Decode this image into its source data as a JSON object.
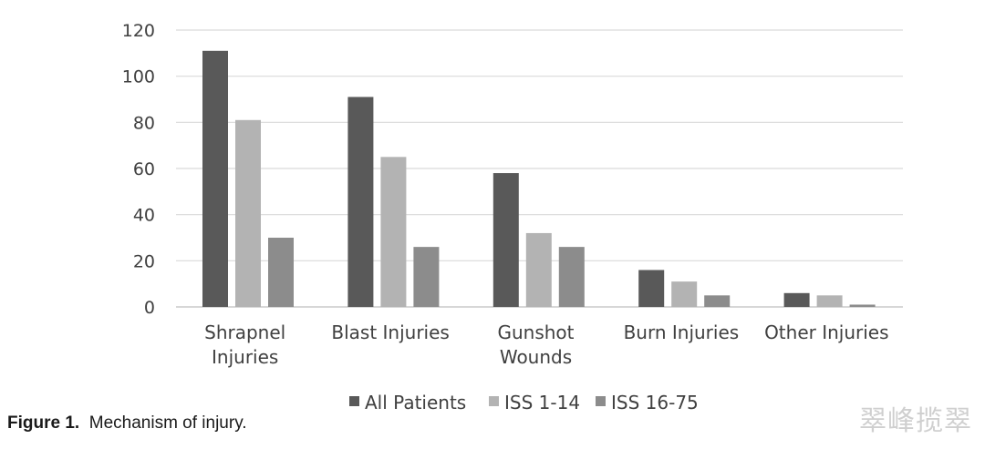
{
  "chart_data": {
    "type": "bar",
    "categories": [
      [
        "Shrapnel",
        "Injuries"
      ],
      [
        "Blast Injuries"
      ],
      [
        "Gunshot",
        "Wounds"
      ],
      [
        "Burn Injuries"
      ],
      [
        "Other Injuries"
      ]
    ],
    "series": [
      {
        "name": "All Patients",
        "color": "#595959",
        "values": [
          111,
          91,
          58,
          16,
          6
        ]
      },
      {
        "name": "ISS 1-14",
        "color": "#b3b3b3",
        "values": [
          81,
          65,
          32,
          11,
          5
        ]
      },
      {
        "name": "ISS 16-75",
        "color": "#8c8c8c",
        "values": [
          30,
          26,
          26,
          5,
          1
        ]
      }
    ],
    "ylim": [
      0,
      120
    ],
    "yticks": [
      0,
      20,
      40,
      60,
      80,
      100,
      120
    ],
    "grid": true,
    "legend": "bottom"
  },
  "caption": {
    "label": "Figure 1.",
    "text": "Mechanism of injury."
  },
  "watermark": "翠峰揽翠"
}
